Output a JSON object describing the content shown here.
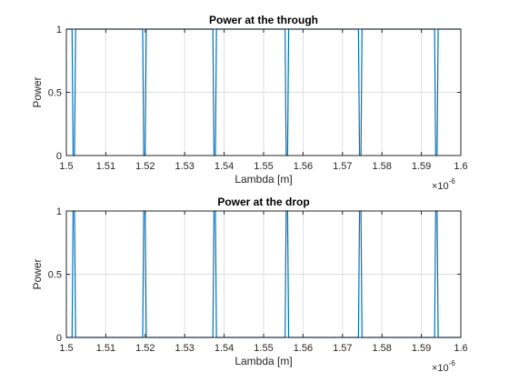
{
  "figure": {
    "background": "#ffffff",
    "axes_color": "#262626",
    "grid_color": "#dfdfdf",
    "line_color": "#0072bd"
  },
  "chart_data": [
    {
      "type": "line",
      "title": "Power at the through",
      "xlabel": "Lambda [m]",
      "ylabel": "Power",
      "xlim": [
        1.5e-06,
        1.6e-06
      ],
      "ylim": [
        0,
        1
      ],
      "grid": true,
      "x_ticks": [
        1.5e-06,
        1.51e-06,
        1.52e-06,
        1.53e-06,
        1.54e-06,
        1.55e-06,
        1.56e-06,
        1.57e-06,
        1.58e-06,
        1.59e-06,
        1.6e-06
      ],
      "x_tick_labels": [
        "1.5",
        "1.51",
        "1.52",
        "1.53",
        "1.54",
        "1.55",
        "1.56",
        "1.57",
        "1.58",
        "1.59",
        "1.6"
      ],
      "x_exponent_label": "×10",
      "x_exponent_value": "-6",
      "y_ticks": [
        0,
        0.5,
        1
      ],
      "y_tick_labels": [
        "0",
        "0.5",
        "1"
      ],
      "series": [
        {
          "resonances": [
            1.5019e-06,
            1.5198e-06,
            1.5376e-06,
            1.5559e-06,
            1.5745e-06,
            1.5938e-06
          ],
          "baseline": 1,
          "peak": 0
        }
      ]
    },
    {
      "type": "line",
      "title": "Power at the drop",
      "xlabel": "Lambda [m]",
      "ylabel": "Power",
      "xlim": [
        1.5e-06,
        1.6e-06
      ],
      "ylim": [
        0,
        1
      ],
      "grid": true,
      "x_ticks": [
        1.5e-06,
        1.51e-06,
        1.52e-06,
        1.53e-06,
        1.54e-06,
        1.55e-06,
        1.56e-06,
        1.57e-06,
        1.58e-06,
        1.59e-06,
        1.6e-06
      ],
      "x_tick_labels": [
        "1.5",
        "1.51",
        "1.52",
        "1.53",
        "1.54",
        "1.55",
        "1.56",
        "1.57",
        "1.58",
        "1.59",
        "1.6"
      ],
      "x_exponent_label": "×10",
      "x_exponent_value": "-6",
      "y_ticks": [
        0,
        0.5,
        1
      ],
      "y_tick_labels": [
        "0",
        "0.5",
        "1"
      ],
      "series": [
        {
          "resonances": [
            1.5019e-06,
            1.5198e-06,
            1.5376e-06,
            1.5559e-06,
            1.5745e-06,
            1.5938e-06
          ],
          "baseline": 0,
          "peak": 1
        }
      ]
    }
  ]
}
